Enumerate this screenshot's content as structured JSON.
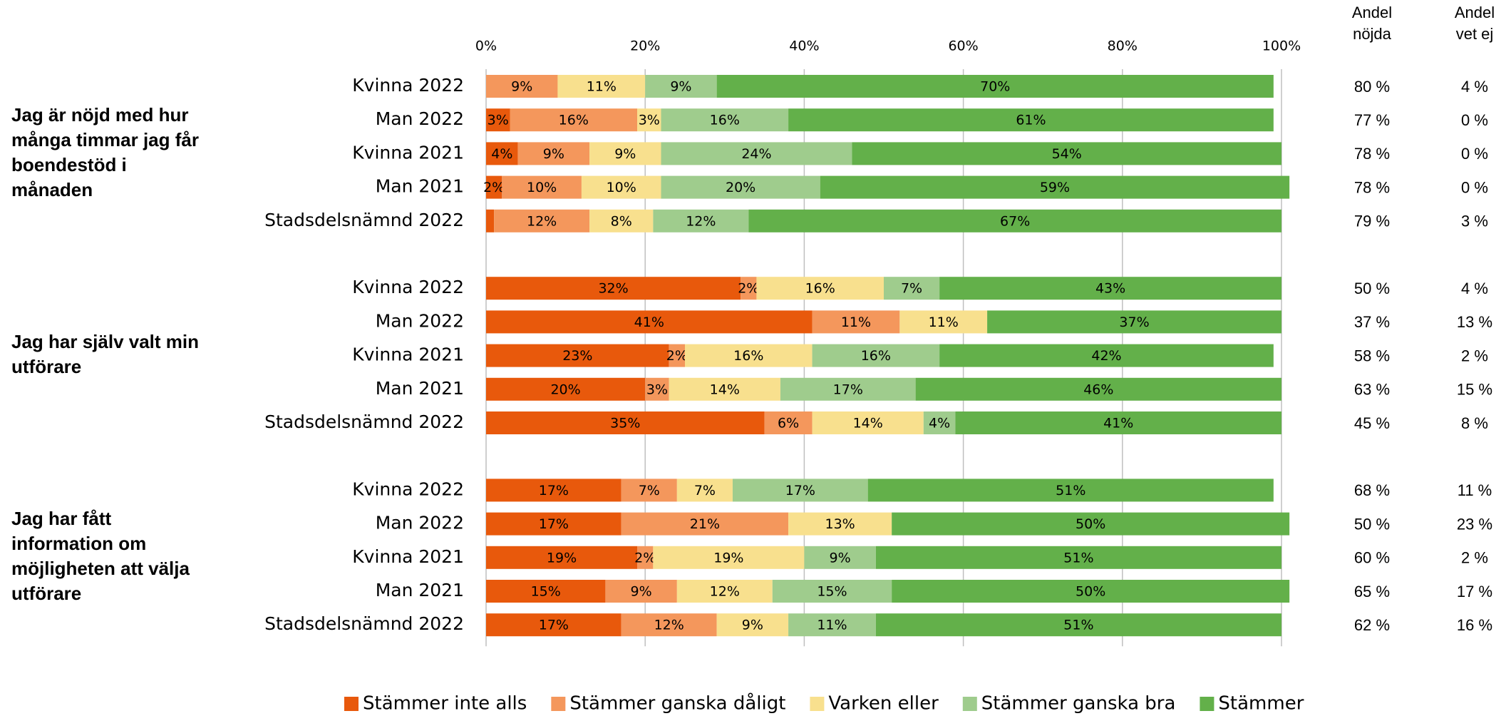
{
  "chart_data": {
    "type": "stacked_bar_horizontal",
    "categories": [
      "Kvinna 2022",
      "Man 2022",
      "Kvinna 2021",
      "Man 2021",
      "Stadsdelsnämnd 2022",
      null,
      "Kvinna 2022",
      "Man 2022",
      "Kvinna 2021",
      "Man 2021",
      "Stadsdelsnämnd 2022",
      null,
      "Kvinna 2022",
      "Man 2022",
      "Kvinna 2021",
      "Man 2021",
      "Stadsdelsnämnd 2022"
    ],
    "group_labels": [
      [
        "Jag är nöjd med hur",
        "många timmar jag får",
        "boendestöd i",
        "månaden"
      ],
      [
        "Jag har själv valt min",
        "utförare"
      ],
      [
        "Jag har fått",
        "information om",
        "möjligheten att välja",
        "utförare"
      ]
    ],
    "xlim": [
      0,
      100
    ],
    "xticks": [
      {
        "value": 0,
        "label": "0%"
      },
      {
        "value": 20,
        "label": "20%"
      },
      {
        "value": 40,
        "label": "40%"
      },
      {
        "value": 60,
        "label": "60%"
      },
      {
        "value": 80,
        "label": "80%"
      },
      {
        "value": 100,
        "label": "100%"
      }
    ],
    "grid": true,
    "legend": "bottom",
    "series": [
      {
        "name": "Stämmer inte alls",
        "color": "#e8590c",
        "values": [
          0,
          3,
          4,
          2,
          1,
          null,
          32,
          41,
          23,
          20,
          35,
          null,
          17,
          17,
          19,
          15,
          17
        ],
        "value_labels": [
          null,
          "3%",
          "4%",
          "2%",
          null,
          null,
          "32%",
          "41%",
          "23%",
          "20%",
          "35%",
          null,
          "17%",
          "17%",
          "19%",
          "15%",
          "17%"
        ]
      },
      {
        "name": "Stämmer ganska dåligt",
        "color": "#f4975c",
        "values": [
          9,
          16,
          9,
          10,
          12,
          null,
          2,
          11,
          2,
          3,
          6,
          null,
          7,
          21,
          2,
          9,
          12
        ],
        "value_labels": [
          "9%",
          "16%",
          "9%",
          "10%",
          "12%",
          null,
          "2%",
          "11%",
          "2%",
          "3%",
          "6%",
          null,
          "7%",
          "21%",
          "2%",
          "9%",
          "12%"
        ]
      },
      {
        "name": "Varken eller",
        "color": "#f8e08e",
        "values": [
          11,
          3,
          9,
          10,
          8,
          null,
          16,
          11,
          16,
          14,
          14,
          null,
          7,
          13,
          19,
          12,
          9
        ],
        "value_labels": [
          "11%",
          "3%",
          "9%",
          "10%",
          "8%",
          null,
          "16%",
          "11%",
          "16%",
          "14%",
          "14%",
          null,
          "7%",
          "13%",
          "19%",
          "12%",
          "9%"
        ]
      },
      {
        "name": "Stämmer ganska bra",
        "color": "#9fcc8d",
        "values": [
          9,
          16,
          24,
          20,
          12,
          null,
          7,
          0,
          16,
          17,
          4,
          null,
          17,
          0,
          9,
          15,
          11
        ],
        "value_labels": [
          "9%",
          "16%",
          "24%",
          "20%",
          "12%",
          null,
          "7%",
          null,
          "16%",
          "17%",
          "4%",
          null,
          "17%",
          null,
          "9%",
          "15%",
          "11%"
        ]
      },
      {
        "name": "Stämmer",
        "color": "#63b04a",
        "values": [
          70,
          61,
          54,
          59,
          67,
          null,
          43,
          37,
          42,
          46,
          41,
          null,
          51,
          50,
          51,
          50,
          51
        ],
        "value_labels": [
          "70%",
          "61%",
          "54%",
          "59%",
          "67%",
          null,
          "43%",
          "37%",
          "42%",
          "46%",
          "41%",
          null,
          "51%",
          "50%",
          "51%",
          "50%",
          "51%"
        ]
      }
    ],
    "columns": [
      {
        "header": [
          "Andel",
          "nöjda"
        ],
        "values": [
          80,
          77,
          78,
          78,
          79,
          null,
          50,
          37,
          58,
          63,
          45,
          null,
          68,
          50,
          60,
          65,
          62
        ],
        "value_labels": [
          "80 %",
          "77 %",
          "78 %",
          "78 %",
          "79 %",
          null,
          "50 %",
          "37 %",
          "58 %",
          "63 %",
          "45 %",
          null,
          "68 %",
          "50 %",
          "60 %",
          "65 %",
          "62 %"
        ]
      },
      {
        "header": [
          "Andel",
          "vet ej"
        ],
        "values": [
          4,
          0,
          0,
          0,
          3,
          null,
          4,
          13,
          2,
          15,
          8,
          null,
          11,
          23,
          2,
          17,
          16
        ],
        "value_labels": [
          "4 %",
          "0 %",
          "0 %",
          "0 %",
          "3 %",
          null,
          "4 %",
          "13 %",
          "2 %",
          "15 %",
          "8 %",
          null,
          "11 %",
          "23 %",
          "2 %",
          "17 %",
          "16 %"
        ]
      }
    ]
  }
}
